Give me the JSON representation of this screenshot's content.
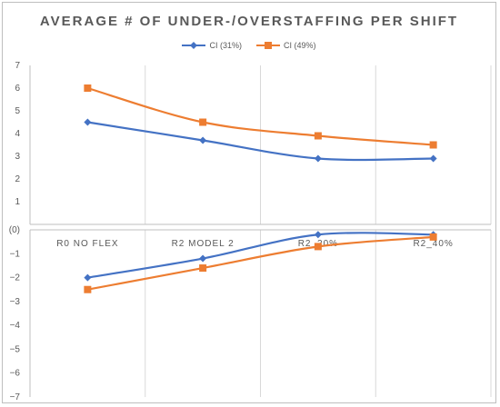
{
  "chart_data": [
    {
      "type": "line",
      "title": "AVERAGE # OF UNDER-/OVERSTAFFING PER SHIFT",
      "legend_position": "top",
      "categories": [
        "R0 NO FLEX",
        "R2 MODEL 2",
        "R2_20%",
        "R2_40%"
      ],
      "x_ticks": [],
      "y_ticks": [
        "1",
        "2",
        "3",
        "4",
        "5",
        "6",
        "7"
      ],
      "ylim": [
        0,
        7
      ],
      "grid": "vertical",
      "series": [
        {
          "name": "CI (31%)",
          "color": "#4472c4",
          "marker": "diamond",
          "values": [
            4.5,
            3.7,
            2.9,
            2.9
          ]
        },
        {
          "name": "CI (49%)",
          "color": "#ed7d31",
          "marker": "square",
          "values": [
            6.0,
            4.5,
            3.9,
            3.5
          ]
        }
      ]
    },
    {
      "type": "line",
      "title": "",
      "categories": [
        "R0 NO FLEX",
        "R2 MODEL 2",
        "R2_20%",
        "R2_40%"
      ],
      "y_ticks": [
        "(0)",
        "−1",
        "−2",
        "−3",
        "−4",
        "−5",
        "−6",
        "−7"
      ],
      "ylim": [
        -7,
        0
      ],
      "grid": "vertical",
      "series": [
        {
          "name": "CI (31%)",
          "color": "#4472c4",
          "marker": "diamond",
          "values": [
            -2.0,
            -1.2,
            -0.2,
            -0.2
          ]
        },
        {
          "name": "CI (49%)",
          "color": "#ed7d31",
          "marker": "square",
          "values": [
            -2.5,
            -1.6,
            -0.7,
            -0.3
          ]
        }
      ]
    }
  ]
}
